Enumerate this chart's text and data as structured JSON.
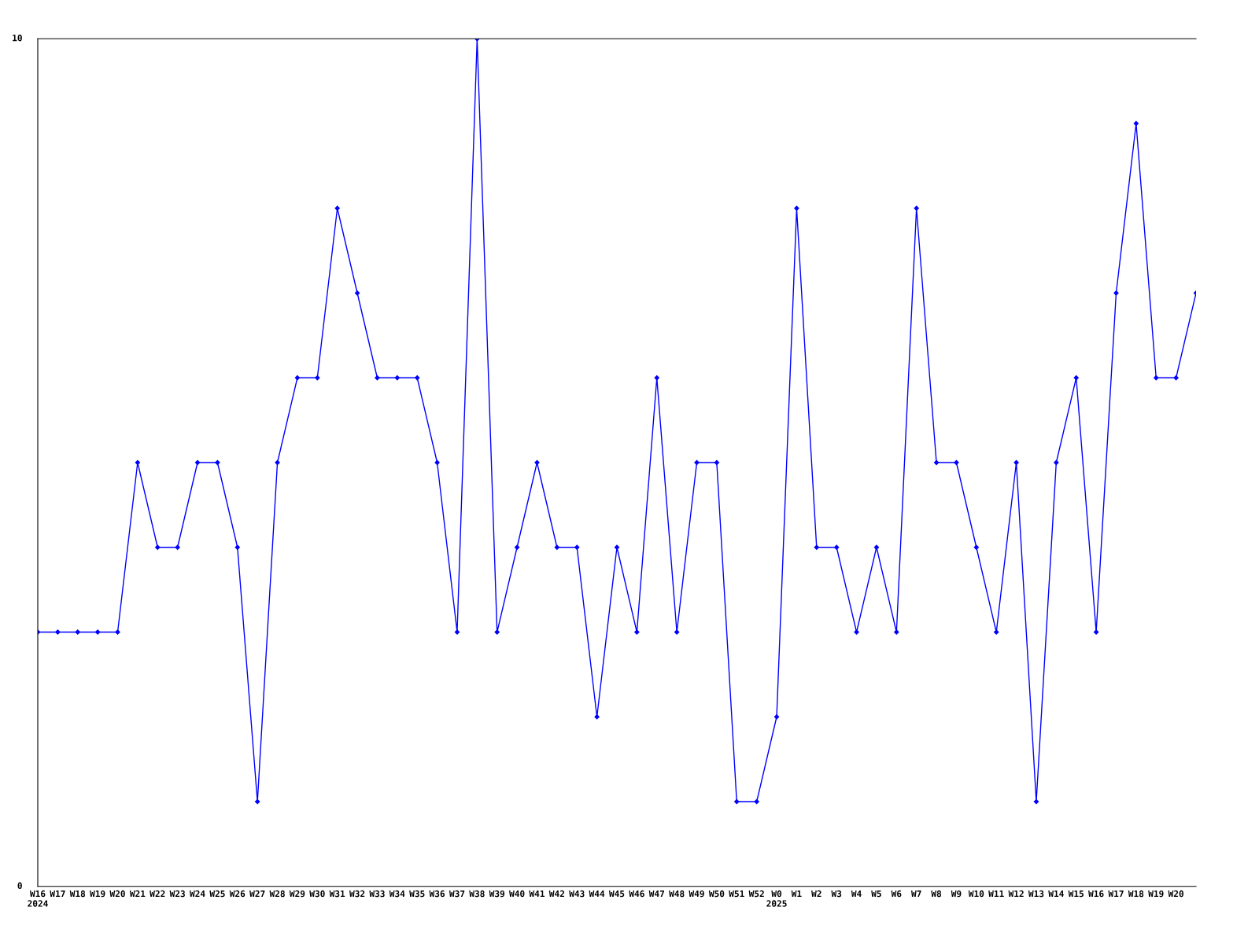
{
  "chart_data": {
    "type": "line",
    "color": "#0000ff",
    "marker": "diamond",
    "line_style": "solid",
    "grid": false,
    "legend": false,
    "categories": [
      "W16\n2024",
      "W17",
      "W18",
      "W19",
      "W20",
      "W21",
      "W22",
      "W23",
      "W24",
      "W25",
      "W26",
      "W27",
      "W28",
      "W29",
      "W30",
      "W31",
      "W32",
      "W33",
      "W34",
      "W35",
      "W36",
      "W37",
      "W38",
      "W39",
      "W40",
      "W41",
      "W42",
      "W43",
      "W44",
      "W45",
      "W46",
      "W47",
      "W48",
      "W49",
      "W50",
      "W51",
      "W52",
      "W0\n2025",
      "W1",
      "W2",
      "W3",
      "W4",
      "W5",
      "W6",
      "W7",
      "W8",
      "W9",
      "W10",
      "W11",
      "W12",
      "W13",
      "W14",
      "W15",
      "W16",
      "W17",
      "W18",
      "W19",
      "W20",
      null
    ],
    "values": [
      3,
      3,
      3,
      3,
      3,
      5,
      4,
      4,
      5,
      5,
      4,
      1,
      5,
      6,
      6,
      8,
      7,
      6,
      6,
      6,
      5,
      3,
      10,
      3,
      4,
      5,
      4,
      4,
      2,
      4,
      3,
      6,
      3,
      5,
      5,
      1,
      1,
      2,
      8,
      4,
      4,
      3,
      4,
      3,
      8,
      5,
      5,
      4,
      3,
      5,
      1,
      5,
      6,
      3,
      7,
      9,
      6,
      6,
      7
    ],
    "ylim": [
      0,
      10
    ],
    "yticks": [
      0,
      10
    ]
  }
}
